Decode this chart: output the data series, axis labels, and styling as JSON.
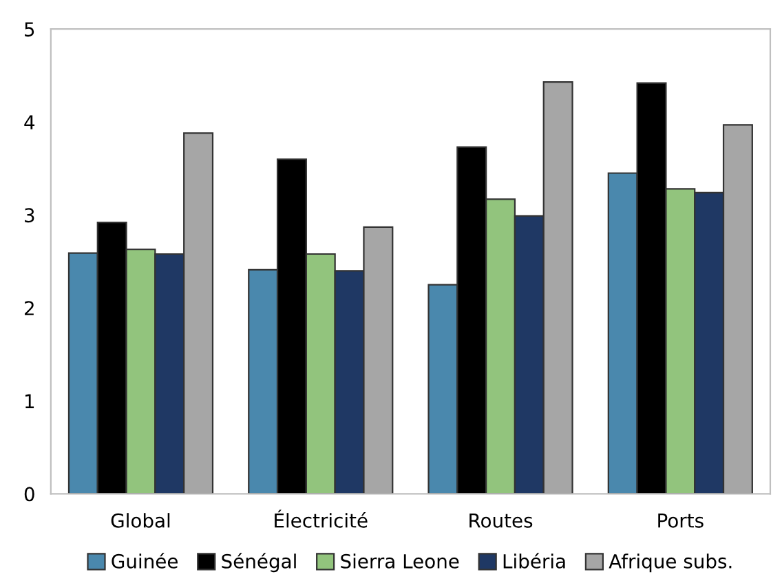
{
  "chart_data": {
    "type": "bar",
    "categories": [
      "Global",
      "Électricité",
      "Routes",
      "Ports"
    ],
    "series": [
      {
        "name": "Guinée",
        "color": "#4a88ad",
        "values": [
          2.59,
          2.41,
          2.25,
          3.45
        ]
      },
      {
        "name": "Sénégal",
        "color": "#000000",
        "values": [
          2.92,
          3.6,
          3.73,
          4.42
        ]
      },
      {
        "name": "Sierra Leone",
        "color": "#92c47d",
        "values": [
          2.63,
          2.58,
          3.17,
          3.28
        ]
      },
      {
        "name": "Libéria",
        "color": "#1f3864",
        "values": [
          2.58,
          2.4,
          2.99,
          3.24
        ]
      },
      {
        "name": "Afrique subs.",
        "color": "#a6a6a6",
        "values": [
          3.88,
          2.87,
          4.43,
          3.97
        ]
      }
    ],
    "ylim": [
      0,
      5
    ],
    "yticks": [
      0,
      1,
      2,
      3,
      4,
      5
    ],
    "grid": false,
    "legend": "bottom"
  }
}
